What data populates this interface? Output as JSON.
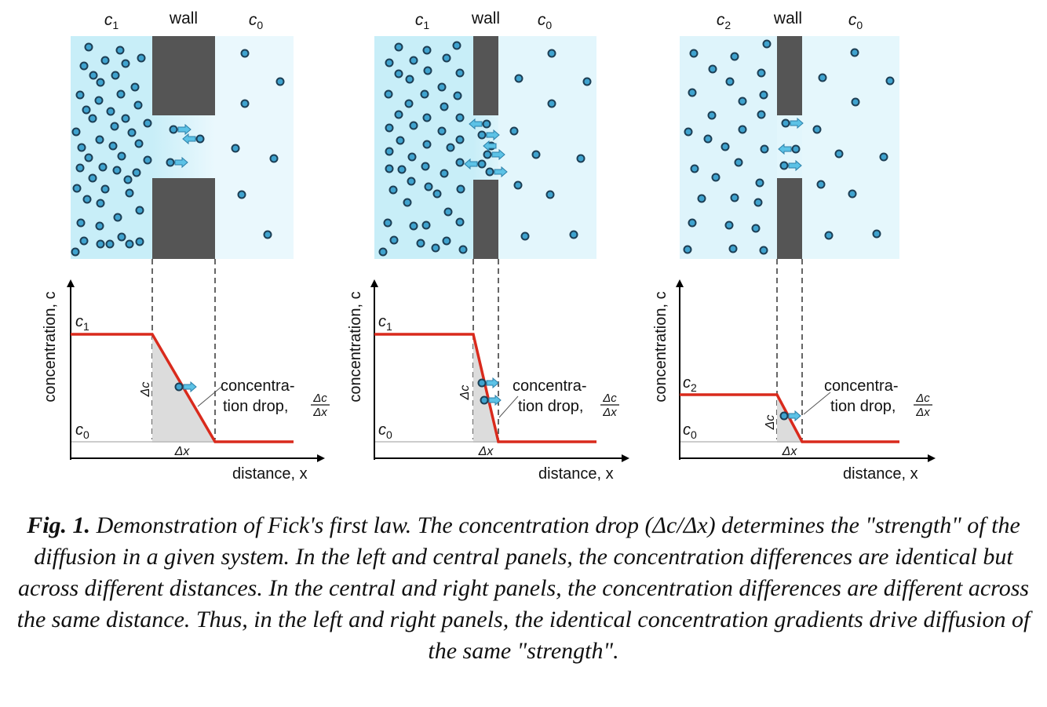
{
  "panels": [
    {
      "name": "left",
      "chamber_left_label_base": "c",
      "chamber_left_label_sub": "1",
      "wall_label": "wall",
      "chamber_right_label_base": "c",
      "chamber_right_label_sub": "0",
      "graph_high_label_base": "c",
      "graph_high_label_sub": "1",
      "graph_low_label_base": "c",
      "graph_low_label_sub": "0",
      "delta_c_label": "Δc",
      "delta_x_label": "Δx",
      "annotation_line1": "concentra-",
      "annotation_line2": "tion drop,",
      "fraction_numerator": "Δc",
      "fraction_denominator": "Δx",
      "y_axis_label": "concentration, c",
      "x_axis_label": "distance, x"
    },
    {
      "name": "center",
      "chamber_left_label_base": "c",
      "chamber_left_label_sub": "1",
      "wall_label": "wall",
      "chamber_right_label_base": "c",
      "chamber_right_label_sub": "0",
      "graph_high_label_base": "c",
      "graph_high_label_sub": "1",
      "graph_low_label_base": "c",
      "graph_low_label_sub": "0",
      "delta_c_label": "Δc",
      "delta_x_label": "Δx",
      "annotation_line1": "concentra-",
      "annotation_line2": "tion drop,",
      "fraction_numerator": "Δc",
      "fraction_denominator": "Δx",
      "y_axis_label": "concentration, c",
      "x_axis_label": "distance, x"
    },
    {
      "name": "right",
      "chamber_left_label_base": "c",
      "chamber_left_label_sub": "2",
      "wall_label": "wall",
      "chamber_right_label_base": "c",
      "chamber_right_label_sub": "0",
      "graph_high_label_base": "c",
      "graph_high_label_sub": "2",
      "graph_low_label_base": "c",
      "graph_low_label_sub": "0",
      "delta_c_label": "Δc",
      "delta_x_label": "Δx",
      "annotation_line1": "concentra-",
      "annotation_line2": "tion drop,",
      "fraction_numerator": "Δc",
      "fraction_denominator": "Δx",
      "y_axis_label": "concentration, c",
      "x_axis_label": "distance, x"
    }
  ],
  "caption": {
    "label": "Fig. 1.",
    "text": "Demonstration of Fick's first law. The concentration drop (Δc/Δx) determines the \"strength\" of the diffusion in a given system. In the left and central panels, the concentration differences are identical but across different distances. In the central and right panels, the concentration differences are different across the same distance. Thus, in the left and right panels, the identical concentration gradients drive diffusion of the same \"strength\"."
  },
  "colors": {
    "high_conc_bg": "#c8eef8",
    "low_conc_bg": "#eaf8fd",
    "wall": "#555555",
    "molecule_fill": "#3fa3cf",
    "molecule_stroke": "#1d3f55",
    "gradient_line": "#d92a1c",
    "drop_fill": "#dcdcdc"
  }
}
